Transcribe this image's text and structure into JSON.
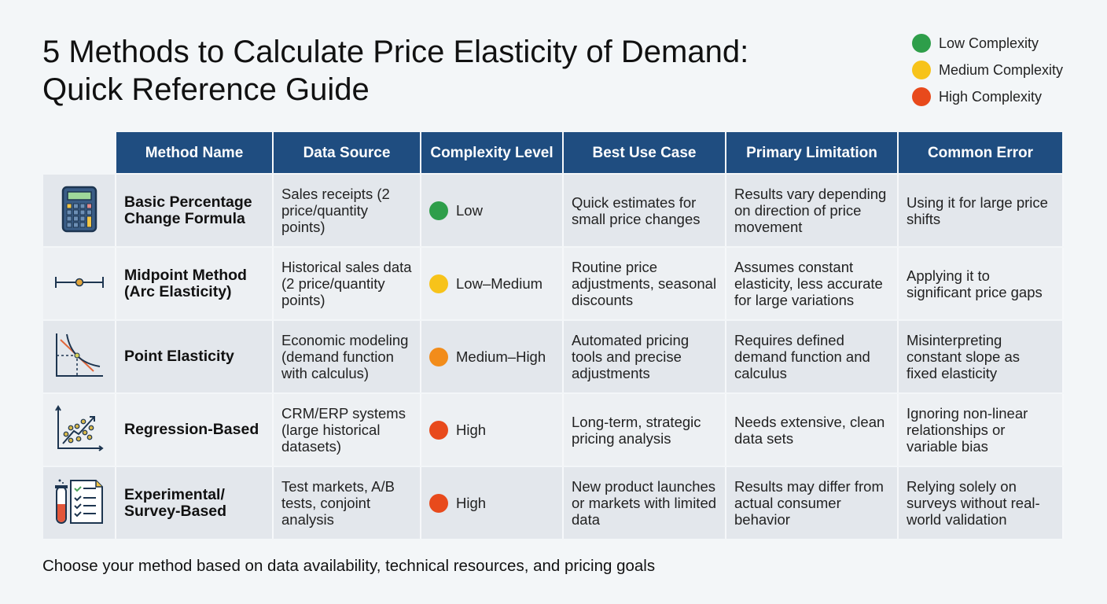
{
  "title_line1": "5 Methods to Calculate Price Elasticity of Demand:",
  "title_line2": "Quick Reference Guide",
  "legend": [
    {
      "label": "Low Complexity",
      "color": "#2e9e4a"
    },
    {
      "label": "Medium Complexity",
      "color": "#f7c31a"
    },
    {
      "label": "High Complexity",
      "color": "#e84a1c"
    }
  ],
  "headers": [
    "Method Name",
    "Data Source",
    "Complexity Level",
    "Best Use Case",
    "Primary Limitation",
    "Common Error"
  ],
  "rows": [
    {
      "icon": "calculator-icon",
      "method": "Basic Percentage Change Formula",
      "source": "Sales receipts (2 price/quantity points)",
      "complexity": "Low",
      "complexity_color": "#2e9e4a",
      "use": "Quick estimates for small price changes",
      "limitation": "Results vary depending on direction of price movement",
      "error": "Using it for large price shifts"
    },
    {
      "icon": "midpoint-icon",
      "method": "Midpoint Method (Arc Elasticity)",
      "source": "Historical sales data (2 price/quantity points)",
      "complexity": "Low–Medium",
      "complexity_color": "#f7c31a",
      "use": "Routine price adjustments, seasonal discounts",
      "limitation": "Assumes constant elasticity, less accurate for large variations",
      "error": "Applying it to significant price gaps"
    },
    {
      "icon": "demand-curve-icon",
      "method": "Point Elasticity",
      "source": "Economic modeling (demand function with calculus)",
      "complexity": "Medium–High",
      "complexity_color": "#f28c1a",
      "use": "Automated pricing tools and precise adjustments",
      "limitation": "Requires defined demand function and calculus",
      "error": "Misinterpreting constant slope as fixed elasticity"
    },
    {
      "icon": "scatter-trend-icon",
      "method": "Regression-Based",
      "source": "CRM/ERP systems (large historical datasets)",
      "complexity": "High",
      "complexity_color": "#e84a1c",
      "use": "Long-term, strategic pricing analysis",
      "limitation": "Needs extensive, clean data sets",
      "error": "Ignoring non-linear relationships or variable bias"
    },
    {
      "icon": "test-tube-checklist-icon",
      "method": "Experimental/ Survey-Based",
      "source": "Test markets, A/B tests, conjoint analysis",
      "complexity": "High",
      "complexity_color": "#e84a1c",
      "use": "New product launches or markets with limited data",
      "limitation": "Results may differ from actual consumer behavior",
      "error": "Relying solely on surveys without real-world validation"
    }
  ],
  "footer": "Choose your method based on data availability, technical resources, and pricing goals"
}
